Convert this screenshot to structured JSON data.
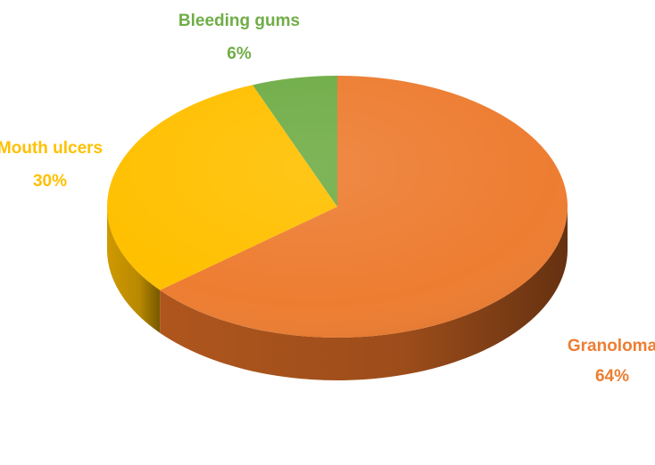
{
  "chart_data": {
    "type": "pie",
    "style": "3d",
    "slices": [
      {
        "label": "Granoloma",
        "value": 64,
        "value_label": "64%",
        "color": "#ED7D31",
        "side_color": "#B85A1F"
      },
      {
        "label": "Mouth ulcers",
        "value": 30,
        "value_label": "30%",
        "color": "#FFC000",
        "side_color": "#D9A100"
      },
      {
        "label": "Bleeding gums",
        "value": 6,
        "value_label": "6%",
        "color": "#70AD47",
        "side_color": "#4F8A2E"
      }
    ],
    "start_angle_deg": 0,
    "direction": "clockwise",
    "legend": "none",
    "grid": false
  }
}
